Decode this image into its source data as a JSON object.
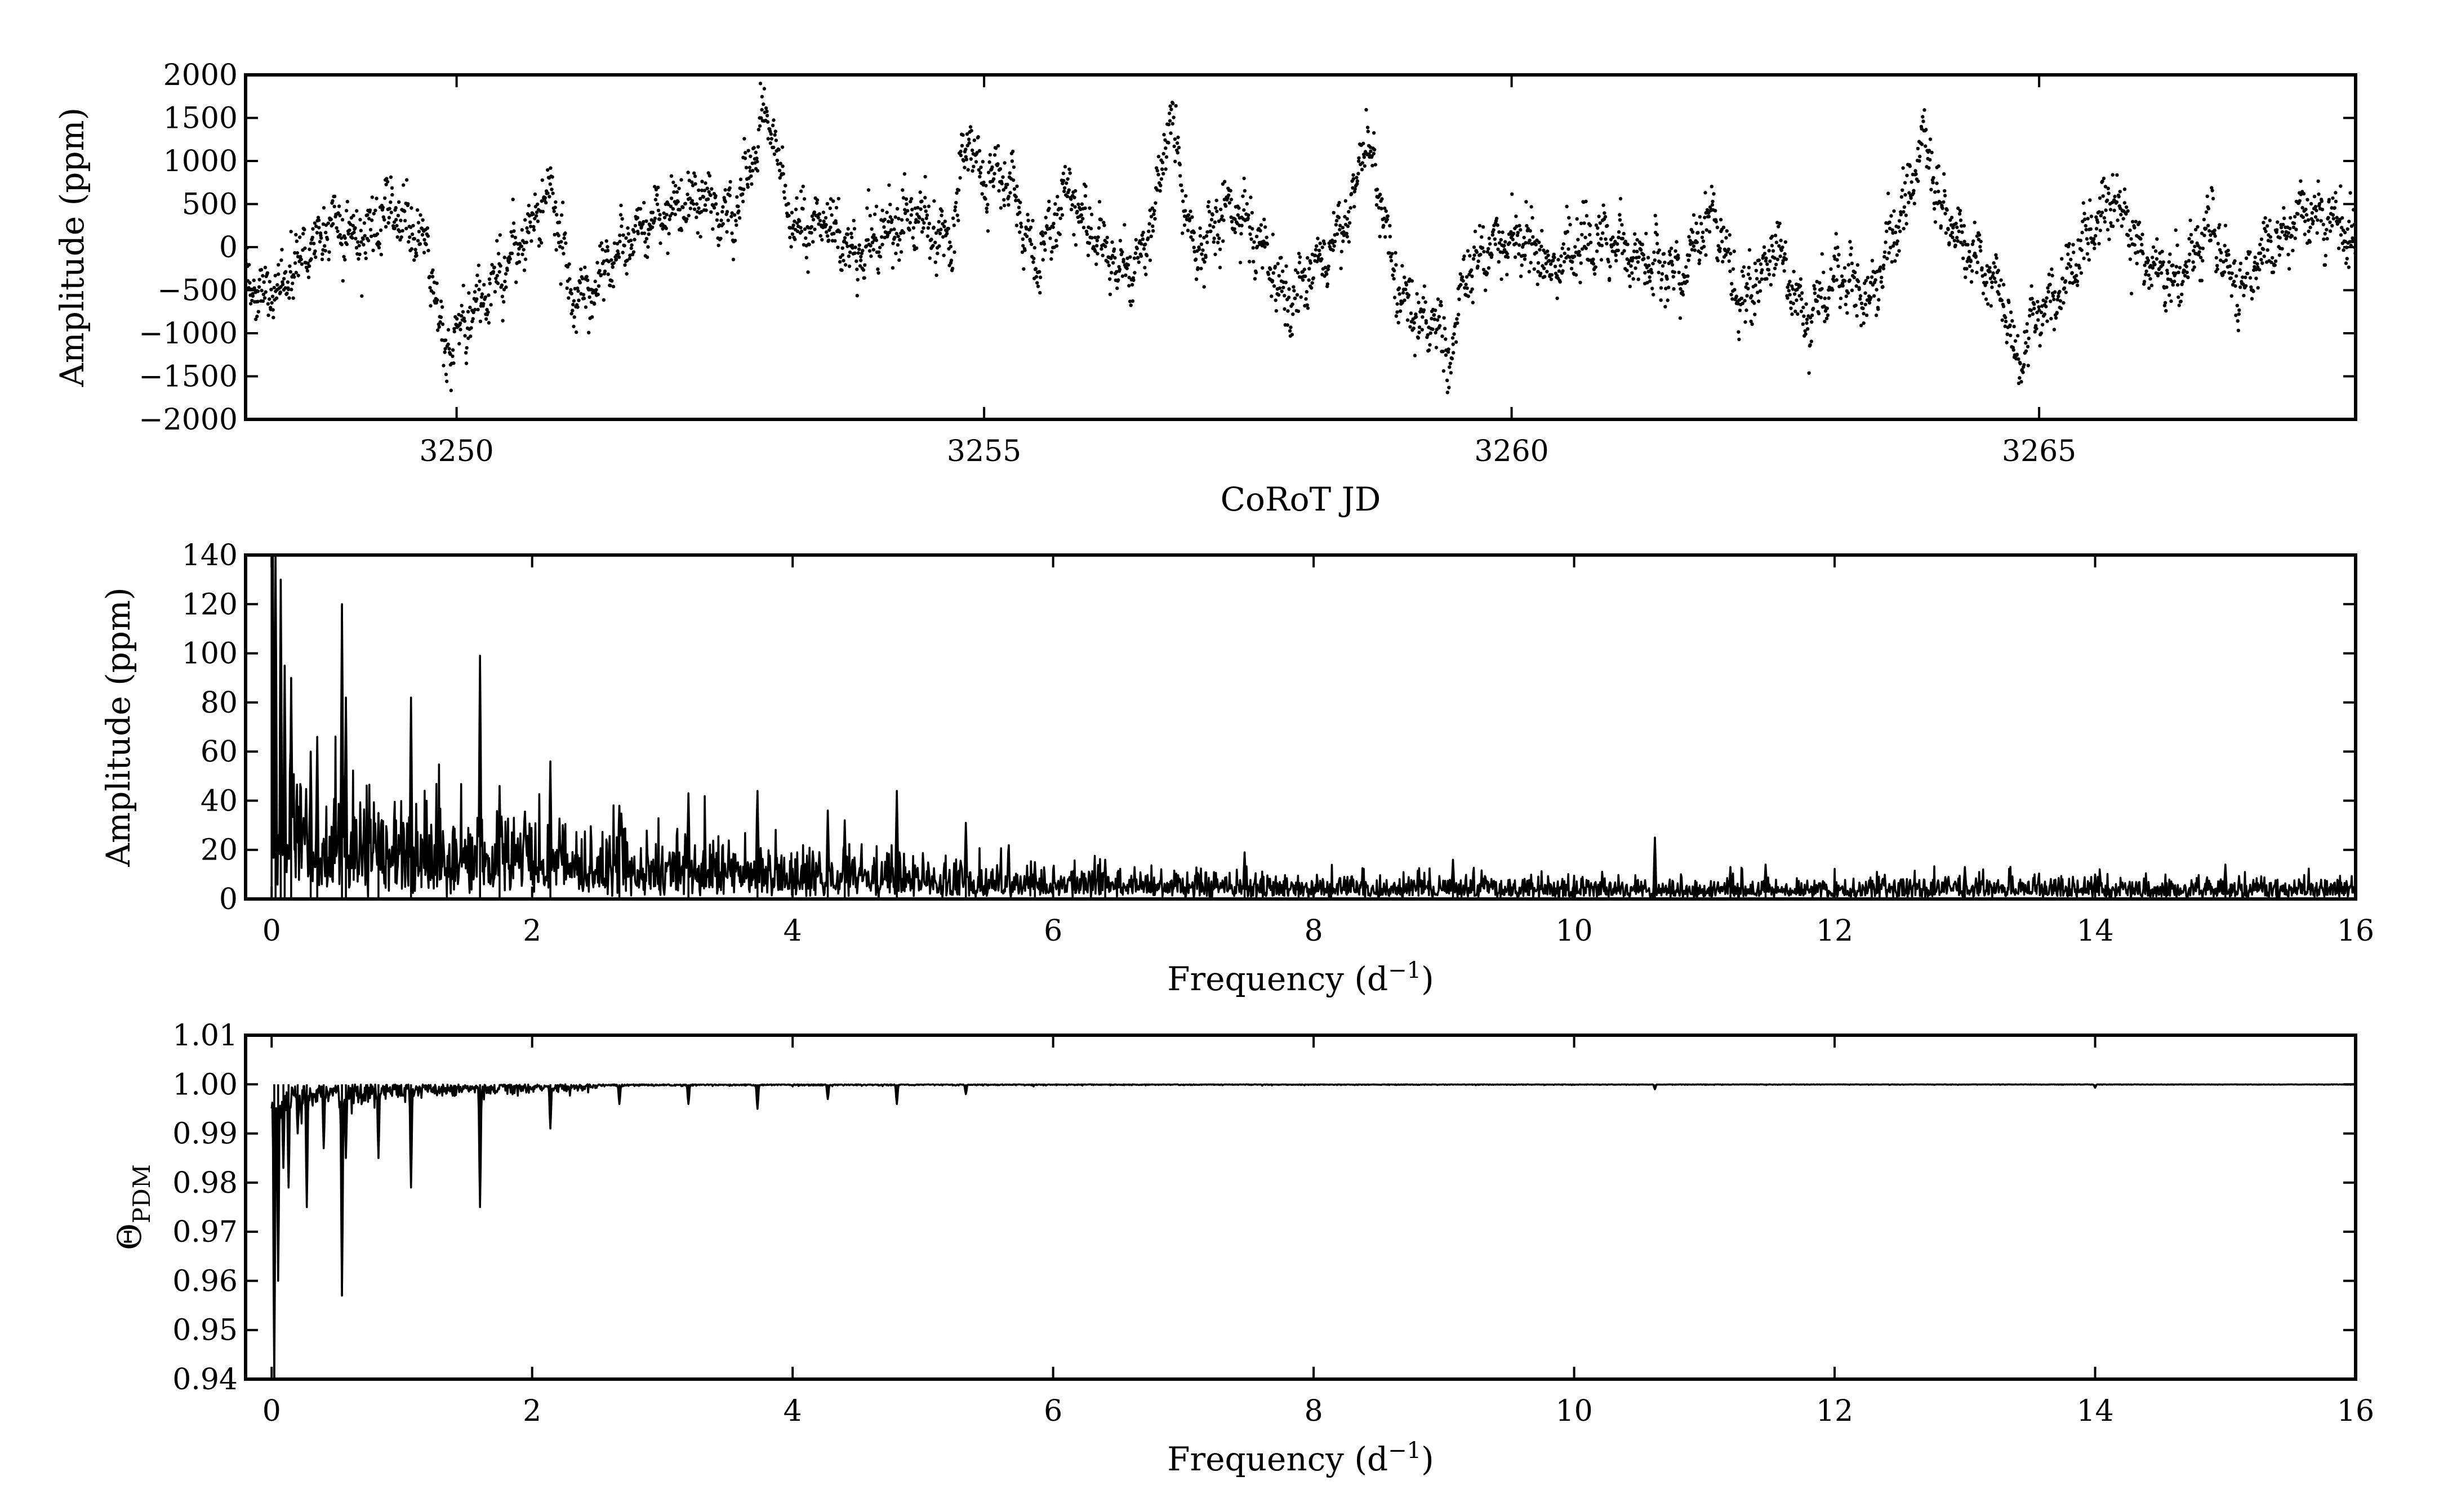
{
  "chart_data": [
    {
      "type": "scatter",
      "title": "",
      "xlabel": "CoRoT JD",
      "ylabel": "Amplitude (ppm)",
      "xlim": [
        3248.0,
        3268.0
      ],
      "ylim": [
        -2000,
        2000
      ],
      "xticks": [
        3250,
        3255,
        3260,
        3265
      ],
      "yticks": [
        -2000,
        -1500,
        -1000,
        -500,
        0,
        500,
        1000,
        1500,
        2000
      ],
      "xtick_labels": [
        "3250",
        "3255",
        "3260",
        "3265"
      ],
      "ytick_labels": [
        "−2000",
        "−1500",
        "−1000",
        "−500",
        "0",
        "500",
        "1000",
        "1500",
        "2000"
      ],
      "marker_color": "#000000",
      "grid": false,
      "envelope": {
        "x": [
          3248.0,
          3248.2,
          3248.5,
          3248.8,
          3249.1,
          3249.4,
          3249.7,
          3250.0,
          3250.3,
          3250.6,
          3250.9,
          3251.1,
          3251.4,
          3251.7,
          3252.0,
          3252.3,
          3252.6,
          3252.9,
          3253.0,
          3253.2,
          3253.5,
          3253.8,
          3254.1,
          3254.4,
          3254.7,
          3254.9,
          3255.2,
          3255.5,
          3255.8,
          3256.1,
          3256.4,
          3256.7,
          3256.8,
          3257.0,
          3257.3,
          3257.6,
          3257.9,
          3258.2,
          3258.5,
          3258.7,
          3258.9,
          3259.2,
          3259.5,
          3259.8,
          3260.1,
          3260.4,
          3260.7,
          3261.0,
          3261.3,
          3261.6,
          3261.9,
          3262.2,
          3262.5,
          3262.8,
          3263.1,
          3263.4,
          3263.7,
          3263.9,
          3264.2,
          3264.5,
          3264.8,
          3265.1,
          3265.4,
          3265.7,
          3266.0,
          3266.3,
          3266.6,
          3266.9,
          3267.2,
          3267.5,
          3267.8,
          3268.0
        ],
        "y": [
          -300,
          -600,
          -200,
          300,
          100,
          450,
          0,
          -900,
          -500,
          0,
          700,
          -600,
          -300,
          200,
          400,
          600,
          300,
          1200,
          1000,
          200,
          300,
          -100,
          200,
          350,
          0,
          700,
          900,
          -200,
          700,
          0,
          -300,
          600,
          1100,
          -100,
          500,
          100,
          -600,
          -150,
          400,
          900,
          -400,
          -900,
          -400,
          0,
          150,
          -300,
          100,
          50,
          -200,
          -300,
          350,
          -700,
          0,
          -900,
          -300,
          -600,
          400,
          800,
          200,
          -250,
          -900,
          -700,
          0,
          600,
          -150,
          -400,
          200,
          -500,
          0,
          400,
          300,
          0
        ]
      },
      "notable_peaks": [
        {
          "x": 3252.95,
          "y": 1700
        },
        {
          "x": 3254.85,
          "y": 1500
        },
        {
          "x": 3256.75,
          "y": 1650
        },
        {
          "x": 3258.6,
          "y": 1350
        },
        {
          "x": 3263.9,
          "y": 1400
        }
      ],
      "notable_dips": [
        {
          "x": 3249.9,
          "y": -1450
        },
        {
          "x": 3259.4,
          "y": -1550
        },
        {
          "x": 3264.8,
          "y": -1500
        }
      ]
    },
    {
      "type": "line",
      "title": "",
      "xlabel": "Frequency (d−1)",
      "xlabel_main": "Frequency (d",
      "xlabel_sup": "−1",
      "xlabel_tail": ")",
      "ylabel": "Amplitude (ppm)",
      "xlim": [
        -0.2,
        16.0
      ],
      "ylim": [
        0,
        140
      ],
      "xticks": [
        0,
        2,
        4,
        6,
        8,
        10,
        12,
        14,
        16
      ],
      "yticks": [
        0,
        20,
        40,
        60,
        80,
        100,
        120,
        140
      ],
      "xtick_labels": [
        "0",
        "2",
        "4",
        "6",
        "8",
        "10",
        "12",
        "14",
        "16"
      ],
      "ytick_labels": [
        "0",
        "20",
        "40",
        "60",
        "80",
        "100",
        "120",
        "140"
      ],
      "line_color": "#000000",
      "grid": false,
      "noise_envelope": {
        "x": [
          0.0,
          0.5,
          1.0,
          1.5,
          2.0,
          2.5,
          3.0,
          3.5,
          4.0,
          4.5,
          5.0,
          5.5,
          6.0,
          7.0,
          8.0,
          9.0,
          10.0,
          11.0,
          12.0,
          13.0,
          14.0,
          15.0,
          16.0
        ],
        "y": [
          30,
          26,
          24,
          22,
          20,
          18,
          16,
          14,
          13,
          12,
          10,
          9,
          8,
          7,
          6,
          6,
          5,
          5,
          5,
          6,
          5,
          5,
          5
        ]
      },
      "peaks": [
        {
          "x": 0.03,
          "y": 140
        },
        {
          "x": 0.07,
          "y": 130
        },
        {
          "x": 0.1,
          "y": 95
        },
        {
          "x": 0.15,
          "y": 90
        },
        {
          "x": 0.3,
          "y": 60
        },
        {
          "x": 0.35,
          "y": 66
        },
        {
          "x": 0.54,
          "y": 120
        },
        {
          "x": 0.57,
          "y": 82
        },
        {
          "x": 0.82,
          "y": 35
        },
        {
          "x": 1.07,
          "y": 82
        },
        {
          "x": 1.6,
          "y": 99
        },
        {
          "x": 1.75,
          "y": 46
        },
        {
          "x": 2.14,
          "y": 56
        },
        {
          "x": 2.67,
          "y": 38
        },
        {
          "x": 3.2,
          "y": 43
        },
        {
          "x": 3.73,
          "y": 44
        },
        {
          "x": 4.27,
          "y": 36
        },
        {
          "x": 4.4,
          "y": 32
        },
        {
          "x": 4.8,
          "y": 44
        },
        {
          "x": 5.33,
          "y": 31
        },
        {
          "x": 5.86,
          "y": 15
        },
        {
          "x": 6.4,
          "y": 16
        },
        {
          "x": 7.47,
          "y": 19
        },
        {
          "x": 9.07,
          "y": 16
        },
        {
          "x": 10.62,
          "y": 25
        },
        {
          "x": 11.2,
          "y": 13
        },
        {
          "x": 11.47,
          "y": 14
        },
        {
          "x": 13.0,
          "y": 13
        },
        {
          "x": 14.0,
          "y": 10
        },
        {
          "x": 15.0,
          "y": 14
        }
      ]
    },
    {
      "type": "line",
      "title": "",
      "xlabel": "Frequency (d−1)",
      "xlabel_main": "Frequency (d",
      "xlabel_sup": "−1",
      "xlabel_tail": ")",
      "ylabel": "ΘPDM",
      "ylabel_main": "Θ",
      "ylabel_sub": "PDM",
      "xlim": [
        -0.2,
        16.0
      ],
      "ylim": [
        0.94,
        1.01
      ],
      "xticks": [
        0,
        2,
        4,
        6,
        8,
        10,
        12,
        14,
        16
      ],
      "yticks": [
        0.94,
        0.95,
        0.96,
        0.97,
        0.98,
        0.99,
        1.0,
        1.01
      ],
      "xtick_labels": [
        "0",
        "2",
        "4",
        "6",
        "8",
        "10",
        "12",
        "14",
        "16"
      ],
      "ytick_labels": [
        "0.94",
        "0.95",
        "0.96",
        "0.97",
        "0.98",
        "0.99",
        "1.00",
        "1.01"
      ],
      "line_color": "#000000",
      "grid": false,
      "baseline": 1.0,
      "dips": [
        {
          "x": 0.02,
          "y": 0.94
        },
        {
          "x": 0.05,
          "y": 0.96
        },
        {
          "x": 0.09,
          "y": 0.983
        },
        {
          "x": 0.13,
          "y": 0.979
        },
        {
          "x": 0.2,
          "y": 0.99
        },
        {
          "x": 0.27,
          "y": 0.975
        },
        {
          "x": 0.4,
          "y": 0.987
        },
        {
          "x": 0.54,
          "y": 0.957
        },
        {
          "x": 0.57,
          "y": 0.985
        },
        {
          "x": 0.82,
          "y": 0.985
        },
        {
          "x": 1.07,
          "y": 0.979
        },
        {
          "x": 1.6,
          "y": 0.975
        },
        {
          "x": 2.14,
          "y": 0.991
        },
        {
          "x": 2.67,
          "y": 0.996
        },
        {
          "x": 3.2,
          "y": 0.996
        },
        {
          "x": 3.73,
          "y": 0.995
        },
        {
          "x": 4.27,
          "y": 0.997
        },
        {
          "x": 4.8,
          "y": 0.996
        },
        {
          "x": 5.33,
          "y": 0.998
        },
        {
          "x": 10.62,
          "y": 0.999
        },
        {
          "x": 14.0,
          "y": 0.9993
        }
      ]
    }
  ]
}
